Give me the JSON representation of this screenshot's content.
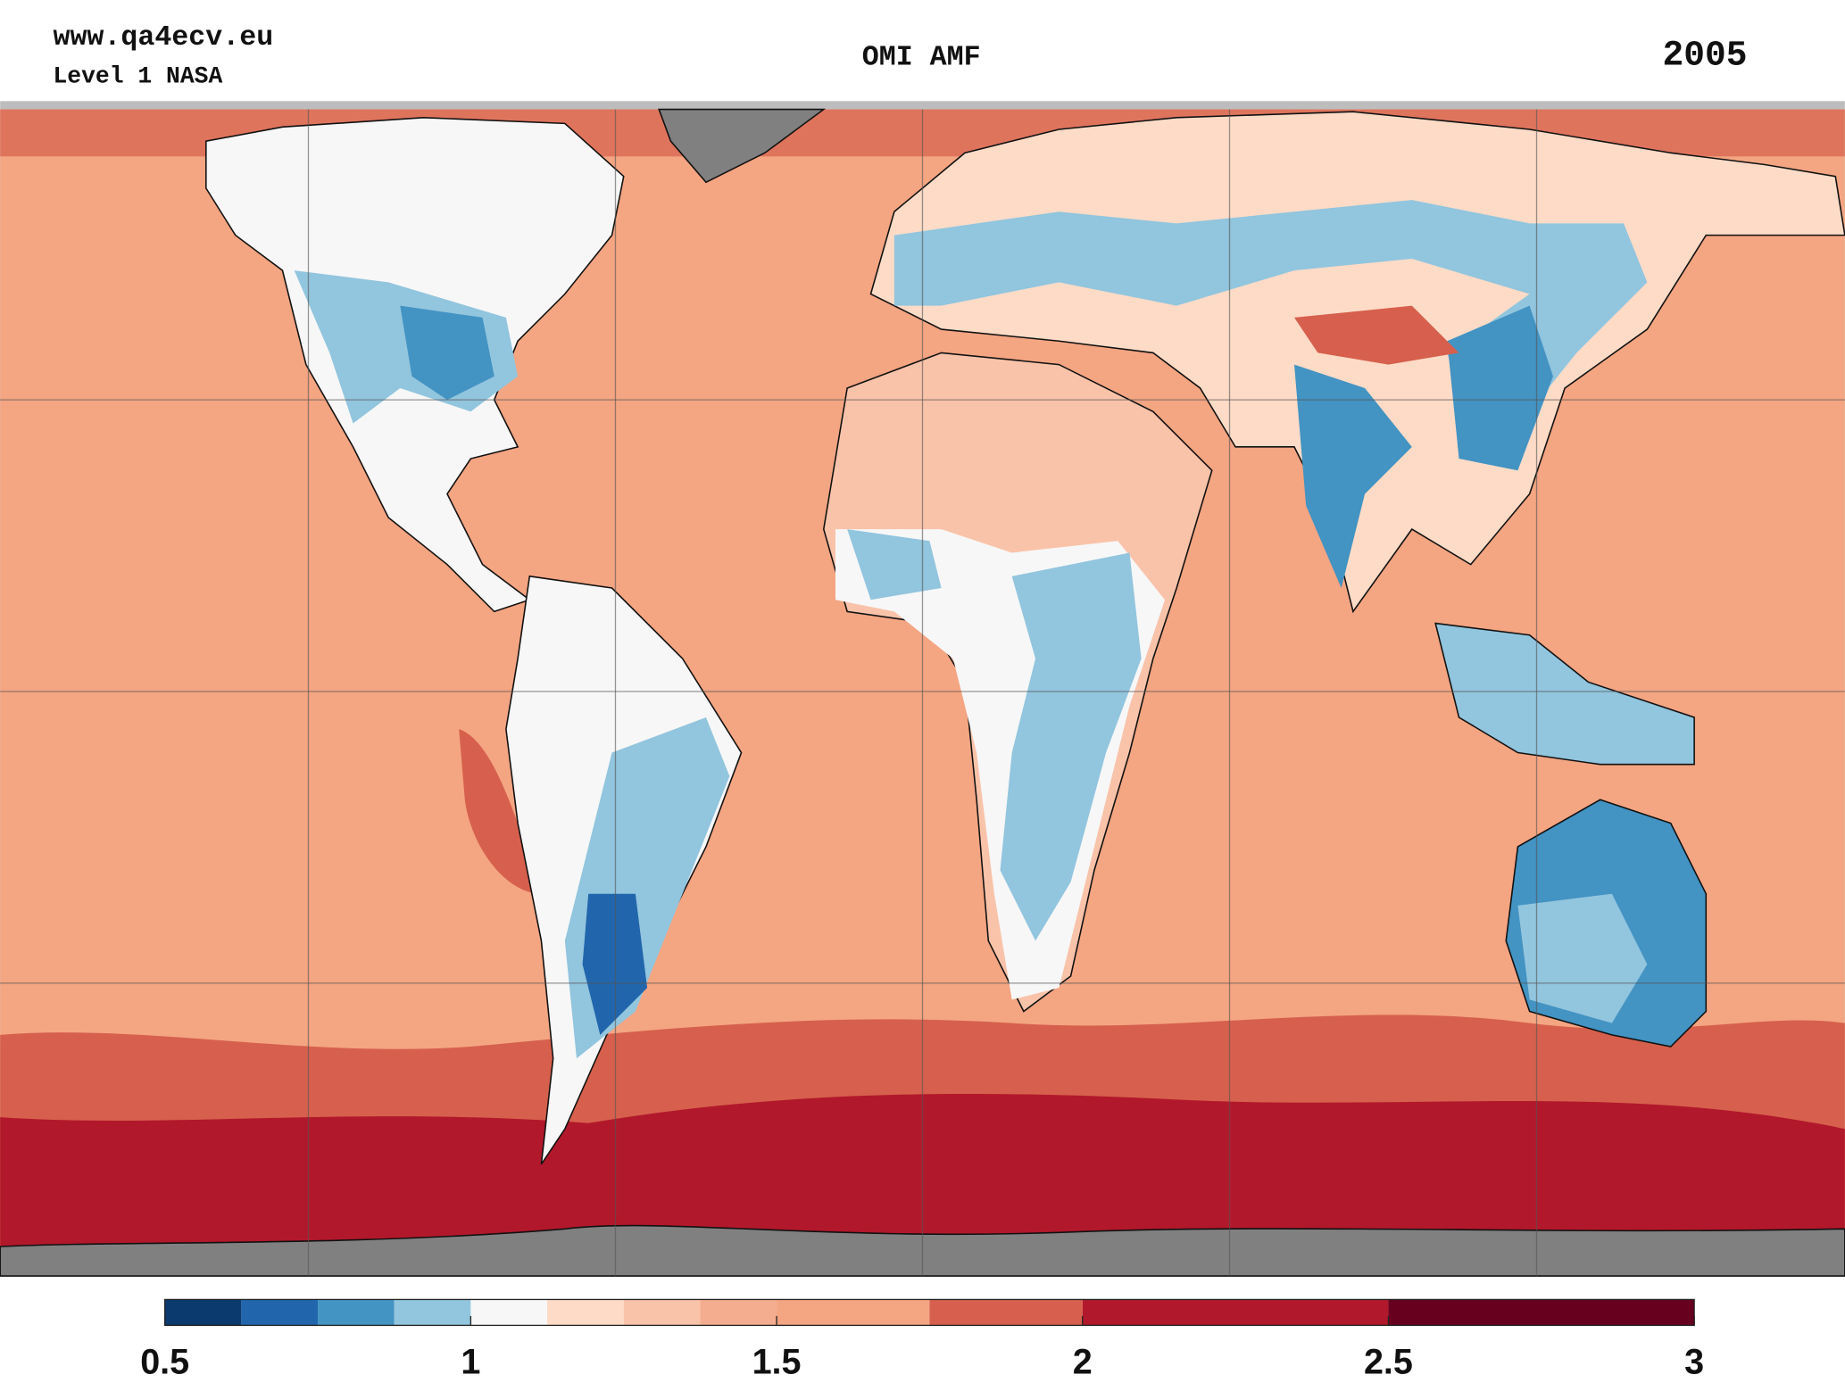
{
  "header": {
    "website": "www.qa4ecv.eu",
    "source": "Level 1 NASA",
    "title": "OMI AMF",
    "year": "2005"
  },
  "chart_data": {
    "type": "colorbar",
    "xlim": [
      0.5,
      3
    ],
    "xticks": [
      0.5,
      1,
      1.5,
      2,
      2.5,
      3
    ],
    "bins": [
      0.5,
      0.625,
      0.75,
      0.875,
      1,
      1.125,
      1.25,
      1.375,
      1.5,
      1.75,
      2,
      2.5,
      3
    ],
    "colors": [
      "#0b3a6e",
      "#2166ac",
      "#4393c3",
      "#92c5de",
      "#f7f7f7",
      "#fddbc7",
      "#f9c3aa",
      "#f5ad8f",
      "#f4a582",
      "#d6604d",
      "#b2182b",
      "#67001f"
    ]
  }
}
